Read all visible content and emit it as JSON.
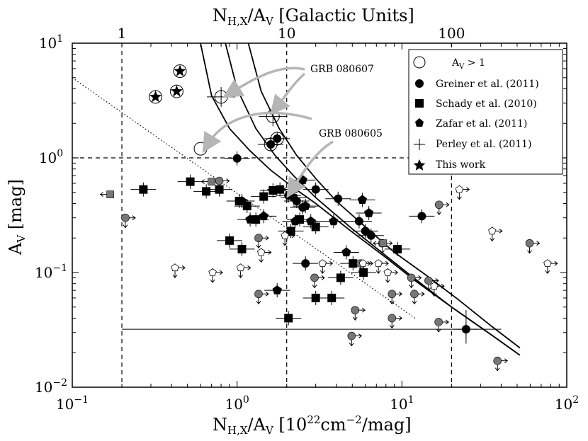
{
  "chart_data": {
    "type": "scatter",
    "x_scale": "log",
    "y_scale": "log",
    "xlim": [
      0.1,
      100
    ],
    "ylim": [
      0.01,
      10
    ],
    "xlabel": "N",
    "xlabel_sub": "H,X",
    "xlabel_rest": "/A",
    "xlabel_sub2": "V",
    "xlabel_unit_pre": " [10",
    "xlabel_unit_sup": "22",
    "xlabel_unit_mid": "cm",
    "xlabel_unit_sup2": "−2",
    "xlabel_unit_post": "/mag]",
    "ylabel": "A",
    "ylabel_sub": "V",
    "ylabel_unit": " [mag]",
    "top_label": "N",
    "top_label_sub": "H,X",
    "top_label_rest": "/A",
    "top_label_sub2": "V",
    "top_label_unit": " [Galactic Units]",
    "x_ticks": [
      {
        "value": 0.1,
        "base": "10",
        "exp": "−1"
      },
      {
        "value": 1,
        "base": "10",
        "exp": "0"
      },
      {
        "value": 10,
        "base": "10",
        "exp": "1"
      },
      {
        "value": 100,
        "base": "10",
        "exp": "2"
      }
    ],
    "y_ticks": [
      {
        "value": 0.01,
        "base": "10",
        "exp": "−2"
      },
      {
        "value": 0.1,
        "base": "10",
        "exp": "−1"
      },
      {
        "value": 1,
        "base": "10",
        "exp": "0"
      },
      {
        "value": 10,
        "base": "10",
        "exp": "1"
      }
    ],
    "top_ticks": [
      {
        "value": 0.2,
        "label": "1"
      },
      {
        "value": 2,
        "label": "10"
      },
      {
        "value": 20,
        "label": "100"
      }
    ],
    "vlines": [
      0.2,
      2,
      20
    ],
    "hlines": [
      1
    ],
    "curves": [
      {
        "name": "model-1",
        "points": [
          [
            0.6,
            10
          ],
          [
            0.7,
            3.5
          ],
          [
            0.9,
            1.8
          ],
          [
            1.2,
            1.15
          ],
          [
            1.6,
            0.78
          ],
          [
            2.2,
            0.55
          ],
          [
            3,
            0.4
          ],
          [
            5,
            0.225
          ],
          [
            8,
            0.135
          ],
          [
            12,
            0.085
          ],
          [
            20,
            0.05
          ],
          [
            35,
            0.0285
          ],
          [
            52,
            0.019
          ]
        ]
      },
      {
        "name": "model-2",
        "points": [
          [
            0.85,
            10
          ],
          [
            1.0,
            4
          ],
          [
            1.3,
            1.8
          ],
          [
            1.7,
            1.05
          ],
          [
            2.2,
            0.7
          ],
          [
            3,
            0.45
          ],
          [
            5,
            0.24
          ],
          [
            8,
            0.14
          ],
          [
            12,
            0.088
          ],
          [
            20,
            0.05
          ],
          [
            35,
            0.0285
          ],
          [
            52,
            0.019
          ]
        ]
      },
      {
        "name": "model-3",
        "points": [
          [
            1.17,
            10
          ],
          [
            1.4,
            3.8
          ],
          [
            1.8,
            1.8
          ],
          [
            2.3,
            1.05
          ],
          [
            3,
            0.66
          ],
          [
            4,
            0.42
          ],
          [
            6,
            0.25
          ],
          [
            9,
            0.15
          ],
          [
            14,
            0.095
          ],
          [
            22,
            0.058
          ],
          [
            35,
            0.034
          ],
          [
            52,
            0.022
          ]
        ]
      }
    ],
    "dotted_line": [
      [
        0.1,
        5
      ],
      [
        12,
        0.04
      ]
    ],
    "series": [
      {
        "name": "greiner",
        "label": "Greiner et al. (2011)",
        "marker": "circle",
        "fill": "#000000",
        "points": [
          [
            1.0,
            0.99
          ],
          [
            1.6,
            1.31
          ],
          [
            1.75,
            1.47
          ],
          [
            2.05,
            0.47
          ],
          [
            2.2,
            0.45
          ],
          [
            2.3,
            0.42
          ],
          [
            2.5,
            0.37
          ],
          [
            3.0,
            0.53
          ],
          [
            4.1,
            0.44
          ],
          [
            5.5,
            0.28
          ],
          [
            6.0,
            0.23
          ],
          [
            6.5,
            0.21
          ],
          [
            13.2,
            0.31
          ],
          [
            24.5,
            0.032
          ],
          [
            2.6,
            0.12
          ]
        ]
      },
      {
        "name": "schady",
        "label": "Schady et al. (2010)",
        "marker": "square",
        "fill": "#000000",
        "points": [
          [
            0.27,
            0.53
          ],
          [
            0.52,
            0.62
          ],
          [
            0.65,
            0.51
          ],
          [
            0.78,
            0.53
          ],
          [
            1.03,
            0.42
          ],
          [
            1.15,
            0.38
          ],
          [
            1.3,
            0.29
          ],
          [
            1.45,
            0.46
          ],
          [
            1.65,
            0.52
          ],
          [
            1.82,
            0.53
          ],
          [
            2.12,
            0.23
          ],
          [
            2.4,
            0.29
          ],
          [
            3.0,
            0.25
          ],
          [
            2.05,
            0.04
          ],
          [
            3.0,
            0.06
          ],
          [
            3.75,
            0.06
          ],
          [
            4.25,
            0.09
          ],
          [
            5.05,
            0.12
          ],
          [
            5.85,
            0.1
          ],
          [
            9.4,
            0.16
          ],
          [
            0.9,
            0.19
          ],
          [
            1.07,
            0.16
          ]
        ]
      },
      {
        "name": "zafar",
        "label": "Zafar et al. (2011)",
        "marker": "pentagon",
        "fill": "#000000",
        "points": [
          [
            1.07,
            0.42
          ],
          [
            1.2,
            0.29
          ],
          [
            1.45,
            0.31
          ],
          [
            1.75,
            0.07
          ],
          [
            2.25,
            0.28
          ],
          [
            2.6,
            0.38
          ],
          [
            2.8,
            0.28
          ],
          [
            3.85,
            0.28
          ],
          [
            4.6,
            0.15
          ],
          [
            5.75,
            0.43
          ],
          [
            6.3,
            0.33
          ],
          [
            2.5,
            0.64
          ]
        ]
      },
      {
        "name": "this-work",
        "label": "This work",
        "marker": "star",
        "fill": "#000000",
        "points": [
          [
            0.32,
            3.4
          ],
          [
            0.43,
            3.8
          ],
          [
            0.45,
            5.7
          ]
        ]
      },
      {
        "name": "av-gt-1",
        "label": "A",
        "label_sub": "V",
        "label_rest": " > 1",
        "marker": "open-circle",
        "fill": "none",
        "points": [
          [
            0.6,
            1.2
          ],
          [
            1.6,
            1.31
          ],
          [
            1.75,
            1.47
          ],
          [
            0.32,
            3.4
          ],
          [
            0.43,
            3.8
          ],
          [
            0.45,
            5.7
          ],
          [
            0.8,
            3.4
          ],
          [
            1.65,
            2.3
          ]
        ]
      },
      {
        "name": "upper-limits-gray",
        "label": "",
        "marker": "gray-circle-limit",
        "fill": "#777777",
        "points": [
          [
            0.21,
            0.3
          ],
          [
            0.78,
            0.63
          ],
          [
            1.35,
            0.2
          ],
          [
            1.35,
            0.065
          ],
          [
            2.95,
            0.09
          ],
          [
            4.95,
            0.028
          ],
          [
            5.2,
            0.047
          ],
          [
            5.6,
            0.12
          ],
          [
            7.6,
            0.18
          ],
          [
            8.7,
            0.04
          ],
          [
            8.7,
            0.065
          ],
          [
            11.4,
            0.09
          ],
          [
            11.9,
            0.065
          ],
          [
            14.5,
            0.085
          ],
          [
            16.7,
            0.037
          ],
          [
            16.8,
            0.39
          ],
          [
            38.0,
            0.017
          ],
          [
            59.5,
            0.18
          ]
        ]
      },
      {
        "name": "perley",
        "label": "Perley et al. (2011)",
        "marker": "plus",
        "fill": "none",
        "points": [
          [
            0.8,
            3.4
          ],
          [
            1.65,
            2.3
          ]
        ]
      },
      {
        "name": "open-pentagon-limits",
        "label": "",
        "marker": "open-pentagon",
        "fill": "none",
        "points": [
          [
            0.42,
            0.11
          ],
          [
            0.71,
            0.1
          ],
          [
            1.05,
            0.11
          ],
          [
            1.4,
            0.15
          ],
          [
            1.95,
            0.21
          ],
          [
            3.3,
            0.12
          ],
          [
            5.8,
            0.12
          ],
          [
            7.2,
            0.12
          ],
          [
            8.2,
            0.1
          ],
          [
            15.7,
            0.076
          ],
          [
            22.3,
            0.53
          ],
          [
            35.3,
            0.23
          ],
          [
            76.4,
            0.12
          ]
        ]
      },
      {
        "name": "gray-squares",
        "label": "",
        "marker": "gray-square",
        "fill": "#777777",
        "points": [
          [
            0.17,
            0.48
          ],
          [
            0.7,
            0.62
          ],
          [
            2.2,
            0.53
          ],
          [
            7.7,
            0.18
          ]
        ]
      }
    ],
    "annotations": [
      {
        "text": "GRB 080607",
        "target": [
          0.8,
          3.4
        ]
      },
      {
        "text": "GRB 080605",
        "target": [
          0.6,
          1.2
        ]
      }
    ],
    "legend_position": "top-right"
  }
}
